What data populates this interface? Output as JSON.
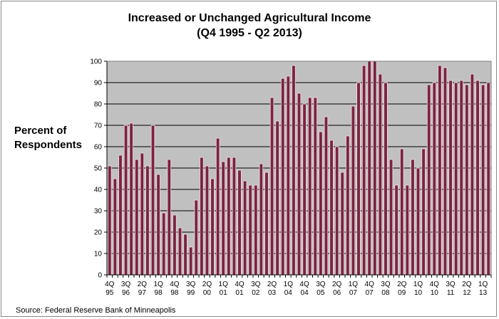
{
  "chart_data": {
    "type": "bar",
    "title": "Increased or Unchanged Agricultural Income",
    "subtitle": "(Q4 1995 - Q2 2013)",
    "ylabel": "Percent of Respondents",
    "ylim": [
      0,
      100
    ],
    "ytick_step": 10,
    "grid": true,
    "legend": "none",
    "values": [
      51,
      45,
      56,
      70,
      71,
      54,
      57,
      51,
      70,
      47,
      29,
      54,
      28,
      22,
      19,
      13,
      35,
      55,
      51,
      45,
      64,
      53,
      55,
      55,
      49,
      44,
      42,
      42,
      52,
      48,
      83,
      72,
      92,
      93,
      98,
      85,
      80,
      83,
      83,
      67,
      74,
      63,
      60,
      48,
      65,
      79,
      90,
      98,
      100,
      100,
      94,
      90,
      54,
      42,
      59,
      42,
      54,
      50,
      59,
      89,
      90,
      98,
      97,
      91,
      90,
      91,
      89,
      94,
      91,
      89,
      90
    ],
    "x_tick_labels": [
      {
        "q": "4Q",
        "y": "95",
        "index": 0
      },
      {
        "q": "3Q",
        "y": "96",
        "index": 3
      },
      {
        "q": "2Q",
        "y": "97",
        "index": 6
      },
      {
        "q": "1Q",
        "y": "98",
        "index": 9
      },
      {
        "q": "4Q",
        "y": "98",
        "index": 12
      },
      {
        "q": "3Q",
        "y": "99",
        "index": 15
      },
      {
        "q": "2Q",
        "y": "00",
        "index": 18
      },
      {
        "q": "1Q",
        "y": "01",
        "index": 21
      },
      {
        "q": "4Q",
        "y": "01",
        "index": 24
      },
      {
        "q": "3Q",
        "y": "02",
        "index": 27
      },
      {
        "q": "2Q",
        "y": "03",
        "index": 30
      },
      {
        "q": "1Q",
        "y": "04",
        "index": 33
      },
      {
        "q": "4Q",
        "y": "04",
        "index": 36
      },
      {
        "q": "3Q",
        "y": "05",
        "index": 39
      },
      {
        "q": "2Q",
        "y": "06",
        "index": 42
      },
      {
        "q": "1Q",
        "y": "07",
        "index": 45
      },
      {
        "q": "4Q",
        "y": "07",
        "index": 48
      },
      {
        "q": "3Q",
        "y": "08",
        "index": 51
      },
      {
        "q": "2Q",
        "y": "09",
        "index": 54
      },
      {
        "q": "1Q",
        "y": "10",
        "index": 57
      },
      {
        "q": "4Q",
        "y": "10",
        "index": 60
      },
      {
        "q": "3Q",
        "y": "11",
        "index": 63
      },
      {
        "q": "2Q",
        "y": "12",
        "index": 66
      },
      {
        "q": "1Q",
        "y": "13",
        "index": 69
      }
    ],
    "colors": {
      "bar_fill": "#7a2440",
      "bar_edge": "#f4dde6",
      "plot_bg": "#c0c0c0"
    }
  },
  "source": "Source: Federal Reserve Bank of Minneapolis"
}
